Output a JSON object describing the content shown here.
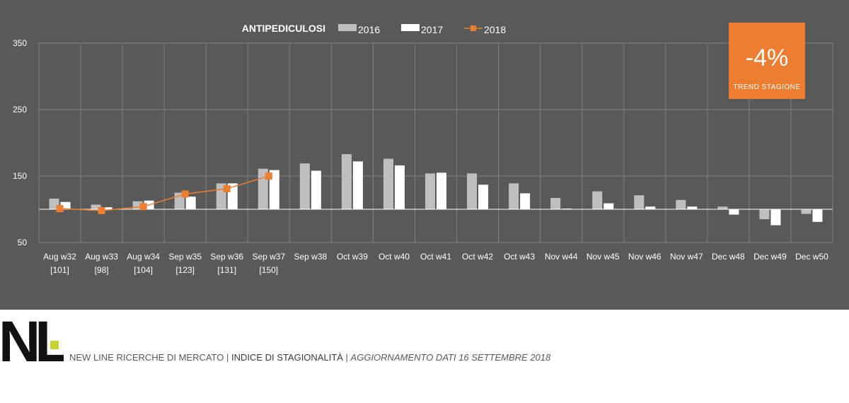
{
  "chart_data": {
    "type": "bar",
    "title": "ANTIPEDICULOSI",
    "categories": [
      "Aug w32",
      "Aug w33",
      "Aug w34",
      "Sep w35",
      "Sep w36",
      "Sep w37",
      "Sep w38",
      "Oct w39",
      "Oct w40",
      "Oct w41",
      "Oct w42",
      "Oct w43",
      "Nov w44",
      "Nov w45",
      "Nov w46",
      "Nov w47",
      "Dec w48",
      "Dec w49",
      "Dec w50"
    ],
    "category_sublabels": [
      "[101]",
      "[98]",
      "[104]",
      "[123]",
      "[131]",
      "[150]",
      "",
      "",
      "",
      "",
      "",
      "",
      "",
      "",
      "",
      "",
      "",
      "",
      ""
    ],
    "y_ticks": [
      "350",
      "250",
      "150",
      "50"
    ],
    "ylim": [
      50,
      350
    ],
    "baseline": 100,
    "series": [
      {
        "name": "2016",
        "type": "bar",
        "color": "#bfbfbf",
        "values": [
          116,
          107,
          112,
          125,
          139,
          161,
          169,
          183,
          176,
          154,
          154,
          139,
          117,
          127,
          121,
          114,
          104,
          85,
          93
        ]
      },
      {
        "name": "2017",
        "type": "bar",
        "color": "#ffffff",
        "values": [
          111,
          103,
          113,
          119,
          139,
          159,
          158,
          172,
          166,
          155,
          137,
          124,
          101,
          109,
          104,
          104,
          92,
          76,
          81
        ]
      },
      {
        "name": "2018",
        "type": "line",
        "color": "#ed7d31",
        "values": [
          101,
          98,
          104,
          123,
          131,
          150,
          null,
          null,
          null,
          null,
          null,
          null,
          null,
          null,
          null,
          null,
          null,
          null,
          null
        ]
      }
    ],
    "legend_position": "top",
    "grid": true
  },
  "trend": {
    "value": "-4%",
    "label": "TREND STAGIONE"
  },
  "logo": {
    "text": "NL"
  },
  "footer": {
    "part1": "NEW LINE RICERCHE DI MERCATO",
    "sep": " | ",
    "part2": "INDICE DI STAGIONALITÀ",
    "part3": "AGGIORNAMENTO DATI 16 SETTEMBRE 2018"
  },
  "colors": {
    "panel": "#595959",
    "grid": "#7f7f7f",
    "accent": "#ed7d31",
    "logo_green": "#c5d530"
  }
}
